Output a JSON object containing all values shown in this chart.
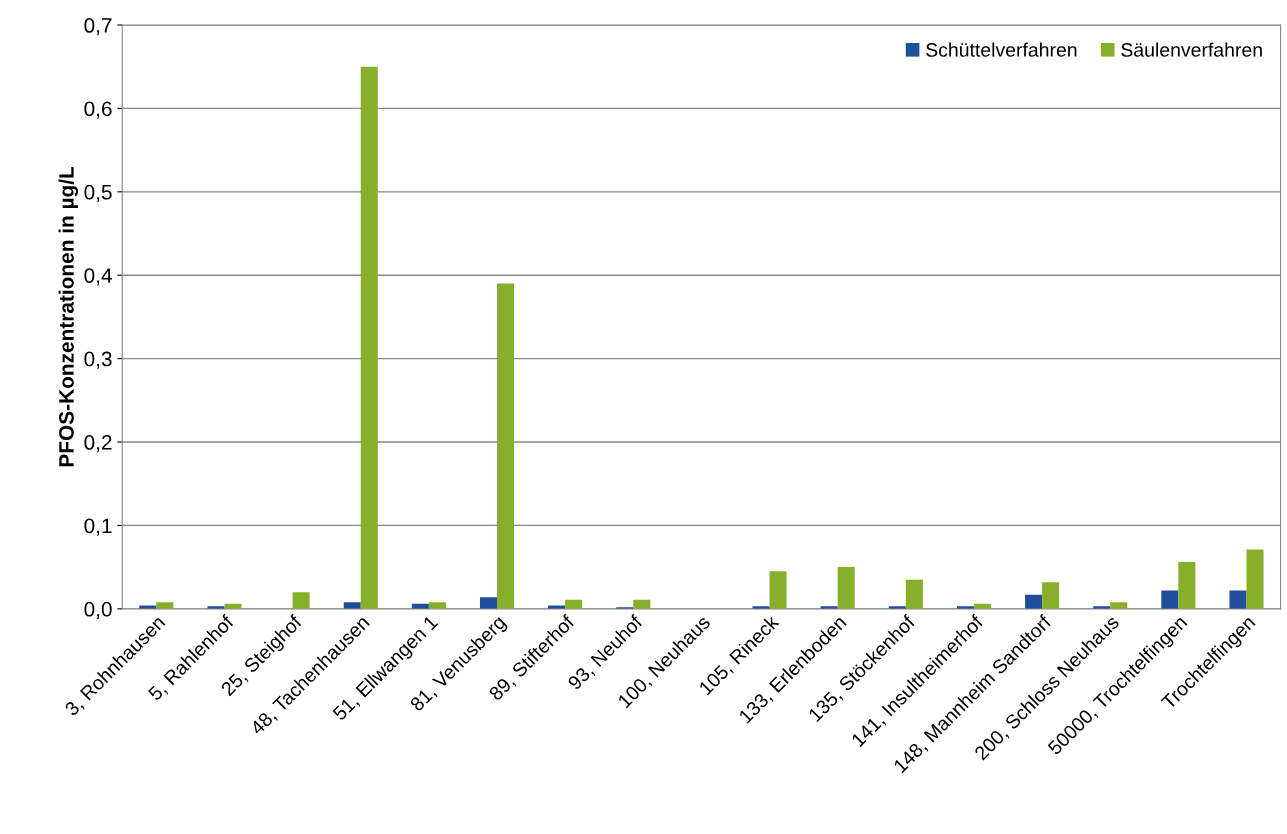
{
  "chart_data": {
    "type": "bar",
    "ylabel": "PFOS-Konzentrationen in µg/L",
    "categories": [
      "3, Rohnhausen",
      "5, Rahlenhof",
      "25, Steighof",
      "48, Tachenhausen",
      "51, Ellwangen 1",
      "81, Venusberg",
      "89, Stifterhof",
      "93, Neuhof",
      "100, Neuhaus",
      "105, Rineck",
      "133, Erlenboden",
      "135, Stöckenhof",
      "141, Insultheimerhof",
      "148, Mannheim Sandtorf",
      "200, Schloss Neuhaus",
      "50000, Trochtelfingen",
      "Trochtelfingen"
    ],
    "series": [
      {
        "name": "Schüttelverfahren",
        "color": "#1f4e9c",
        "values": [
          0.004,
          0.003,
          null,
          0.008,
          0.006,
          0.014,
          0.004,
          0.002,
          null,
          0.003,
          0.003,
          0.003,
          0.003,
          0.017,
          0.003,
          0.022,
          0.022
        ]
      },
      {
        "name": "Säulenverfahren",
        "color": "#86b02a",
        "values": [
          0.008,
          0.006,
          0.02,
          0.65,
          0.008,
          0.39,
          0.011,
          0.011,
          null,
          0.045,
          0.05,
          0.035,
          0.006,
          0.032,
          0.008,
          0.056,
          0.071
        ]
      }
    ],
    "ylim": [
      0,
      0.7
    ],
    "yticks": [
      {
        "value": 0,
        "label": "0,0"
      },
      {
        "value": 0.1,
        "label": "0,1"
      },
      {
        "value": 0.2,
        "label": "0,2"
      },
      {
        "value": 0.3,
        "label": "0,3"
      },
      {
        "value": 0.4,
        "label": "0,4"
      },
      {
        "value": 0.5,
        "label": "0,5"
      },
      {
        "value": 0.6,
        "label": "0,6"
      },
      {
        "value": 0.7,
        "label": "0,7"
      }
    ],
    "grid": "y",
    "legend": "top right"
  }
}
